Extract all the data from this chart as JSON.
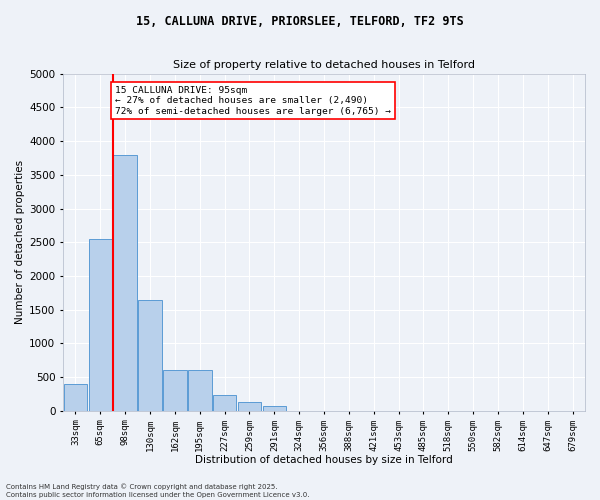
{
  "title_line1": "15, CALLUNA DRIVE, PRIORSLEE, TELFORD, TF2 9TS",
  "title_line2": "Size of property relative to detached houses in Telford",
  "xlabel": "Distribution of detached houses by size in Telford",
  "ylabel": "Number of detached properties",
  "categories": [
    "33sqm",
    "65sqm",
    "98sqm",
    "130sqm",
    "162sqm",
    "195sqm",
    "227sqm",
    "259sqm",
    "291sqm",
    "324sqm",
    "356sqm",
    "388sqm",
    "421sqm",
    "453sqm",
    "485sqm",
    "518sqm",
    "550sqm",
    "582sqm",
    "614sqm",
    "647sqm",
    "679sqm"
  ],
  "values": [
    400,
    2550,
    3800,
    1650,
    600,
    600,
    230,
    130,
    80,
    0,
    0,
    0,
    0,
    0,
    0,
    0,
    0,
    0,
    0,
    0,
    0
  ],
  "bar_color": "#b8d0eb",
  "bar_edge_color": "#5b9bd5",
  "vline_color": "red",
  "vline_x": 1.5,
  "ylim": [
    0,
    5000
  ],
  "yticks": [
    0,
    500,
    1000,
    1500,
    2000,
    2500,
    3000,
    3500,
    4000,
    4500,
    5000
  ],
  "annotation_text": "15 CALLUNA DRIVE: 95sqm\n← 27% of detached houses are smaller (2,490)\n72% of semi-detached houses are larger (6,765) →",
  "background_color": "#eef2f8",
  "grid_color": "#ffffff",
  "footnote": "Contains HM Land Registry data © Crown copyright and database right 2025.\nContains public sector information licensed under the Open Government Licence v3.0."
}
